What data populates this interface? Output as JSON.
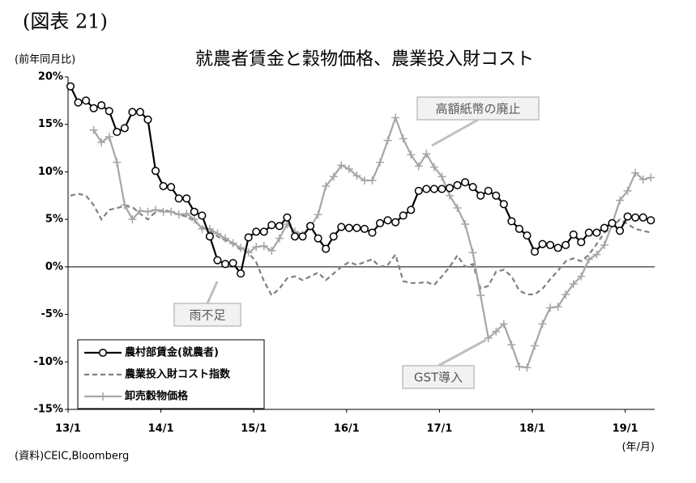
{
  "chart_data": {
    "type": "line",
    "figure_label": "(図表 21)",
    "title": "就農者賃金と穀物価格、農業投入財コスト",
    "y_axis_label": "(前年同月比)",
    "x_axis_label": "(年/月)",
    "source": "(資料)CEIC,Bloomberg",
    "annotations": [
      "高額紙幣の廃止",
      "雨不足",
      "GST導入"
    ],
    "categories": [
      "13/1",
      null,
      null,
      null,
      null,
      null,
      null,
      null,
      null,
      null,
      null,
      null,
      "14/1",
      null,
      null,
      null,
      null,
      null,
      null,
      null,
      null,
      null,
      null,
      null,
      "15/1",
      null,
      null,
      null,
      null,
      null,
      null,
      null,
      null,
      null,
      null,
      null,
      "16/1",
      null,
      null,
      null,
      null,
      null,
      null,
      null,
      null,
      null,
      null,
      null,
      "17/1",
      null,
      null,
      null,
      null,
      null,
      null,
      null,
      null,
      null,
      null,
      null,
      "18/1",
      null,
      null,
      null,
      null,
      null,
      null,
      null,
      null,
      null,
      null,
      null,
      "19/1",
      null,
      null,
      null
    ],
    "ylim": [
      -15,
      20
    ],
    "yticks": [
      {
        "value": -15,
        "label": "-15%"
      },
      {
        "value": -10,
        "label": "-10%"
      },
      {
        "value": -5,
        "label": "-5%"
      },
      {
        "value": 0,
        "label": "0%"
      },
      {
        "value": 5,
        "label": "5%"
      },
      {
        "value": 10,
        "label": "10%"
      },
      {
        "value": 15,
        "label": "15%"
      },
      {
        "value": 20,
        "label": "20%"
      }
    ],
    "series": [
      {
        "name": "農村部賃金(就農者)",
        "color": "#000000",
        "style": "circle",
        "values": [
          19.0,
          17.3,
          17.5,
          16.7,
          17.0,
          16.4,
          14.2,
          14.6,
          16.3,
          16.3,
          15.5,
          10.1,
          8.5,
          8.4,
          7.2,
          7.2,
          5.8,
          5.4,
          3.2,
          0.7,
          0.3,
          0.4,
          -0.7,
          3.1,
          3.7,
          3.7,
          4.4,
          4.3,
          5.2,
          3.2,
          3.2,
          4.3,
          3.0,
          1.9,
          3.2,
          4.2,
          4.1,
          4.1,
          4.0,
          3.6,
          4.6,
          4.9,
          4.7,
          5.4,
          6.0,
          8.0,
          8.2,
          8.2,
          8.2,
          8.3,
          8.6,
          8.9,
          8.4,
          7.5,
          8.0,
          7.5,
          6.6,
          4.8,
          4.0,
          3.3,
          1.6,
          2.4,
          2.3,
          2.0,
          2.3,
          3.4,
          2.6,
          3.6,
          3.6,
          4.1,
          4.6,
          3.8,
          5.3,
          5.2,
          5.2,
          4.9
        ]
      },
      {
        "name": "農業投入財コスト指数",
        "color": "#808080",
        "style": "dashed",
        "values": [
          7.5,
          7.7,
          7.5,
          6.5,
          5.0,
          6.0,
          6.2,
          6.4,
          6.3,
          5.6,
          5.0,
          5.8,
          6.0,
          5.8,
          5.5,
          5.3,
          4.8,
          4.2,
          3.8,
          3.2,
          2.8,
          2.4,
          1.8,
          1.5,
          0.5,
          -1.5,
          -3.0,
          -2.3,
          -1.2,
          -1.0,
          -1.4,
          -1.0,
          -0.6,
          -1.4,
          -0.7,
          0.0,
          0.5,
          0.2,
          0.5,
          0.8,
          0.0,
          0.2,
          1.3,
          -1.5,
          -1.7,
          -1.7,
          -1.6,
          -1.9,
          -1.0,
          0.0,
          1.2,
          0.0,
          0.3,
          -2.3,
          -2.0,
          -0.5,
          -0.3,
          -1.0,
          -2.5,
          -2.9,
          -2.9,
          -2.3,
          -1.3,
          -0.4,
          0.6,
          0.9,
          0.6,
          1.3,
          2.4,
          3.6,
          4.2,
          5.0,
          4.5,
          4.0,
          3.8,
          3.6
        ]
      },
      {
        "name": "卸売穀物価格",
        "color": "#a6a6a6",
        "style": "plus",
        "values": [
          null,
          null,
          null,
          14.4,
          13.1,
          13.7,
          11.0,
          6.5,
          5.0,
          5.9,
          5.8,
          6.0,
          5.8,
          5.8,
          5.5,
          5.6,
          5.0,
          4.0,
          4.0,
          3.5,
          3.0,
          2.5,
          2.0,
          1.5,
          2.1,
          2.2,
          1.7,
          3.0,
          4.5,
          3.7,
          3.4,
          4.2,
          5.5,
          8.5,
          9.5,
          10.7,
          10.3,
          9.6,
          9.1,
          9.1,
          11.0,
          13.3,
          15.7,
          13.5,
          11.8,
          10.6,
          11.9,
          10.5,
          9.5,
          7.5,
          6.2,
          4.5,
          1.5,
          -3.0,
          -7.5,
          -6.8,
          -6.0,
          -8.2,
          -10.5,
          -10.6,
          -8.3,
          -6.0,
          -4.3,
          -4.2,
          -2.9,
          -1.8,
          -1.0,
          0.8,
          1.3,
          2.3,
          4.5,
          7.0,
          8.0,
          9.9,
          9.2,
          9.4
        ]
      }
    ]
  }
}
